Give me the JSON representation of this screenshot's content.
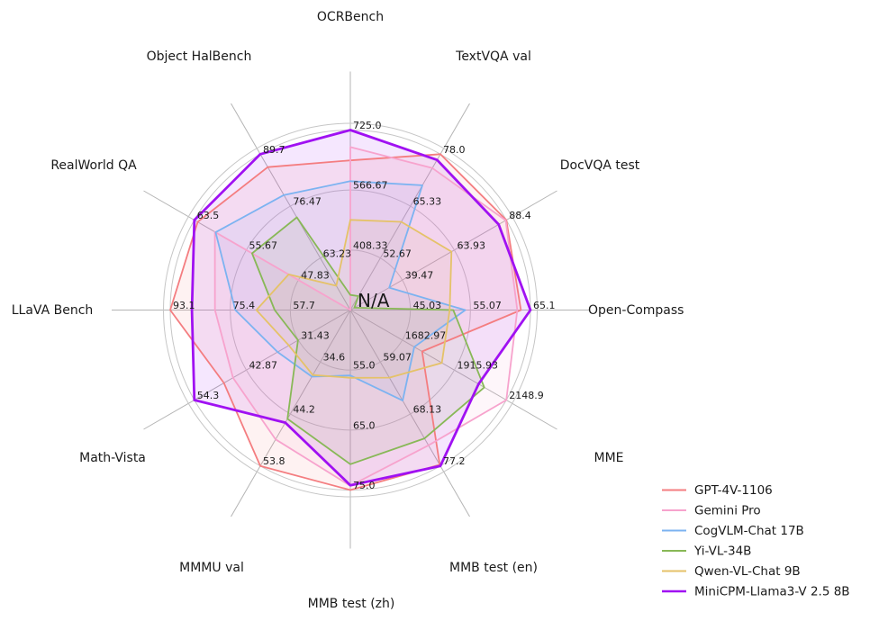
{
  "chart_data": {
    "type": "radar",
    "title": "",
    "center_label": "N/A",
    "grid": true,
    "legend_position": "lower right",
    "axes": [
      {
        "label": "OCRBench",
        "min": 250,
        "max": 725,
        "tick_labels": [
          "408.33",
          "566.67",
          "725.0"
        ]
      },
      {
        "label": "TextVQA val",
        "min": 40,
        "max": 78,
        "tick_labels": [
          "52.67",
          "65.33",
          "78.0"
        ]
      },
      {
        "label": "DocVQA test",
        "min": 15,
        "max": 88.4,
        "tick_labels": [
          "39.47",
          "63.93",
          "88.4"
        ]
      },
      {
        "label": "Open-Compass",
        "min": 35,
        "max": 65.1,
        "tick_labels": [
          "45.03",
          "55.07",
          "65.1"
        ]
      },
      {
        "label": "MME",
        "min": 1450,
        "max": 2148.9,
        "tick_labels": [
          "1682.97",
          "1915.93",
          "2148.9"
        ]
      },
      {
        "label": "MMB test (en)",
        "min": 50,
        "max": 77.2,
        "tick_labels": [
          "59.07",
          "68.13",
          "77.2"
        ]
      },
      {
        "label": "MMB test (zh)",
        "min": 45,
        "max": 75.0,
        "tick_labels": [
          "55.0",
          "65.0",
          "75.0"
        ]
      },
      {
        "label": "MMMU val",
        "min": 25,
        "max": 53.8,
        "tick_labels": [
          "34.6",
          "44.2",
          "53.8"
        ]
      },
      {
        "label": "Math-Vista",
        "min": 20,
        "max": 54.3,
        "tick_labels": [
          "31.43",
          "42.87",
          "54.3"
        ]
      },
      {
        "label": "LLaVA Bench",
        "min": 40,
        "max": 93.1,
        "tick_labels": [
          "57.7",
          "75.4",
          "93.1"
        ]
      },
      {
        "label": "RealWorld QA",
        "min": 40,
        "max": 63.5,
        "tick_labels": [
          "47.83",
          "55.67",
          "63.5"
        ]
      },
      {
        "label": "Object HalBench",
        "min": 50,
        "max": 89.7,
        "tick_labels": [
          "63.23",
          "76.47",
          "89.7"
        ]
      }
    ],
    "series": [
      {
        "name": "GPT-4V-1106",
        "color": "#F47D80",
        "line_width": 1.8,
        "values": [
          645,
          78.0,
          88.4,
          63.5,
          1771.5,
          77.0,
          75.0,
          53.8,
          47.8,
          93.1,
          63.0,
          86.4
        ]
      },
      {
        "name": "Gemini Pro",
        "color": "#F7A3CD",
        "line_width": 1.8,
        "values": [
          680,
          74.6,
          88.1,
          62.9,
          2148.9,
          73.6,
          74.3,
          48.9,
          45.8,
          79.9,
          60.4,
          null
        ]
      },
      {
        "name": "CogVLM-Chat 17B",
        "color": "#7CB3F1",
        "line_width": 1.8,
        "values": [
          590,
          70.4,
          33.3,
          54.2,
          1736.6,
          65.8,
          55.9,
          37.3,
          36.0,
          73.9,
          60.3,
          79.3
        ]
      },
      {
        "name": "Yi-VL-34B",
        "color": "#88B857",
        "line_width": 1.8,
        "values": [
          290,
          43.4,
          16.9,
          52.2,
          2050.2,
          72.4,
          70.7,
          45.1,
          31.5,
          62.3,
          54.8,
          73.6
        ]
      },
      {
        "name": "Qwen-VL-Chat 9B",
        "color": "#E5C268",
        "line_width": 1.8,
        "values": [
          488,
          61.5,
          62.6,
          51.6,
          1860.0,
          61.8,
          56.3,
          37.0,
          33.5,
          67.7,
          49.3,
          56.2
        ]
      },
      {
        "name": "MiniCPM-Llama3-V 2.5 8B",
        "color": "#A011F2",
        "line_width": 2.8,
        "values": [
          725,
          76.6,
          84.8,
          65.1,
          2024.6,
          77.2,
          74.2,
          45.8,
          54.3,
          86.7,
          63.5,
          89.7
        ]
      }
    ]
  }
}
